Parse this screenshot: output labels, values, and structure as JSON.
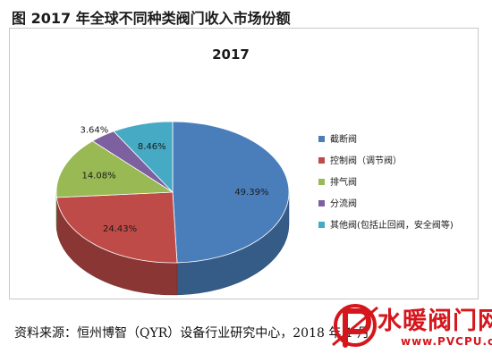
{
  "figure_title": "图 2017 年全球不同种类阀门收入市场份额",
  "source_text": "资料来源：恒州博智（QYR）设备行业研究中心，2018 年 1 月",
  "watermark": {
    "text": "水暖阀门网",
    "url": "www.PVCPU.com",
    "color": "#d6161d"
  },
  "chart_data": {
    "type": "pie",
    "title": "2017",
    "unit": "%",
    "categories": [
      "截断阀",
      "控制阀（调节阀）",
      "排气阀",
      "分流阀",
      "其他阀(包括止回阀，安全阀等)"
    ],
    "values": [
      49.39,
      24.43,
      14.08,
      3.64,
      8.46
    ],
    "data_labels": [
      "49.39%",
      "24.43%",
      "14.08%",
      "3.64%",
      "8.46%"
    ],
    "colors": [
      "#4a7ebb",
      "#be4b48",
      "#98b954",
      "#7d60a0",
      "#46aac4"
    ],
    "legend_position": "right",
    "style": "3d"
  }
}
